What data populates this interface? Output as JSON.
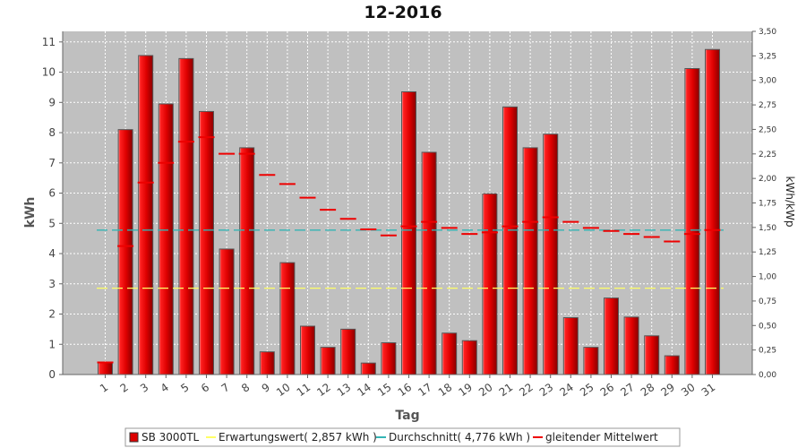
{
  "chart_data": {
    "type": "bar",
    "title": "12-2016",
    "xlabel": "Tag",
    "ylabel": "kWh",
    "ylabel_right": "kWh/kWp",
    "ylim": [
      0,
      11.35
    ],
    "ylim_right": [
      0,
      3.5
    ],
    "yticks": [
      "0",
      "1",
      "2",
      "3",
      "4",
      "5",
      "6",
      "7",
      "8",
      "9",
      "10",
      "11"
    ],
    "yticks_right": [
      "0,00",
      "0,25",
      "0,50",
      "0,75",
      "1,00",
      "1,25",
      "1,50",
      "1,75",
      "2,00",
      "2,25",
      "2,50",
      "2,75",
      "3,00",
      "3,25",
      "3,50"
    ],
    "grid": true,
    "legend_position": "bottom",
    "categories": [
      "1",
      "2",
      "3",
      "4",
      "5",
      "6",
      "7",
      "8",
      "9",
      "10",
      "11",
      "12",
      "13",
      "14",
      "15",
      "16",
      "17",
      "18",
      "19",
      "20",
      "21",
      "22",
      "23",
      "24",
      "25",
      "26",
      "27",
      "28",
      "29",
      "30",
      "31"
    ],
    "series": [
      {
        "name": "SB 3000TL",
        "type": "bar",
        "color": "#dd0000",
        "values": [
          0.4,
          8.1,
          10.55,
          8.95,
          10.45,
          8.7,
          4.15,
          7.5,
          0.75,
          3.7,
          1.6,
          0.9,
          1.5,
          0.38,
          1.05,
          9.35,
          7.35,
          1.37,
          1.12,
          5.98,
          8.85,
          7.5,
          7.95,
          1.88,
          0.9,
          2.53,
          1.9,
          1.28,
          0.62,
          10.12,
          10.75
        ]
      },
      {
        "name": "Erwartungswert( 2,857 kWh )",
        "type": "reference-line",
        "color": "#ffff66",
        "value": 2.857
      },
      {
        "name": "Durchschnitt( 4,776 kWh )",
        "type": "reference-line",
        "color": "#33b5b5",
        "value": 4.776
      },
      {
        "name": "gleitender Mittelwert",
        "type": "marker",
        "color": "#ee0000",
        "values": [
          0.4,
          4.25,
          6.35,
          7.0,
          7.7,
          7.85,
          7.3,
          7.3,
          6.6,
          6.3,
          5.85,
          5.45,
          5.15,
          4.8,
          4.6,
          4.9,
          5.05,
          4.85,
          4.65,
          4.7,
          4.9,
          5.05,
          5.2,
          5.05,
          4.85,
          4.75,
          4.65,
          4.55,
          4.4,
          4.65,
          4.78
        ]
      }
    ]
  }
}
